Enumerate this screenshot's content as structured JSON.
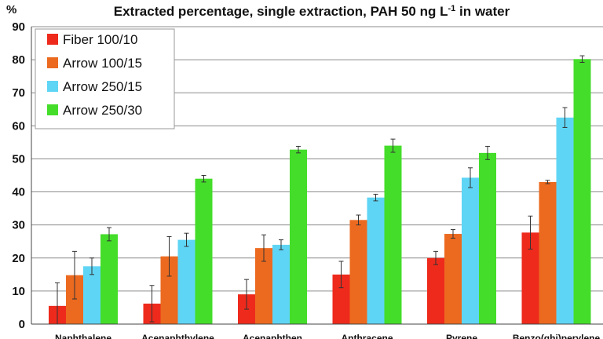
{
  "chart_data": {
    "type": "bar",
    "title": "Extracted percentage, single extraction, PAH 50 ng L",
    "title_superscript": "-1",
    "title_suffix": " in water",
    "ylabel": "%",
    "xlabel": "",
    "ylim": [
      0,
      90
    ],
    "yticks": [
      0,
      10,
      20,
      30,
      40,
      50,
      60,
      70,
      80,
      90
    ],
    "grid": true,
    "legend_position": "top-left",
    "categories": [
      "Naphthalene",
      "Acenaphthylene",
      "Acenaphthen",
      "Anthracene",
      "Pyrene",
      "Benzo(ghi)perylene"
    ],
    "series": [
      {
        "name": "Fiber 100/10",
        "color": "#ee2a1c",
        "values": [
          5.5,
          6.2,
          9.0,
          15.0,
          20.0,
          27.7
        ],
        "errors": [
          7.0,
          5.5,
          4.5,
          4.0,
          2.0,
          5.0
        ]
      },
      {
        "name": "Arrow 100/15",
        "color": "#ec6a1f",
        "values": [
          14.8,
          20.5,
          23.0,
          31.5,
          27.3,
          43.0
        ],
        "errors": [
          7.2,
          6.0,
          4.0,
          1.5,
          1.3,
          0.5
        ]
      },
      {
        "name": "Arrow 250/15",
        "color": "#5fd5f5",
        "values": [
          17.5,
          25.5,
          24.0,
          38.3,
          44.3,
          62.5
        ],
        "errors": [
          2.5,
          2.0,
          1.5,
          1.0,
          3.0,
          3.0
        ]
      },
      {
        "name": "Arrow 250/30",
        "color": "#44dd2a",
        "values": [
          27.2,
          44.0,
          52.8,
          54.0,
          51.8,
          80.2
        ],
        "errors": [
          2.0,
          1.0,
          1.0,
          2.0,
          2.0,
          1.0
        ]
      }
    ]
  }
}
